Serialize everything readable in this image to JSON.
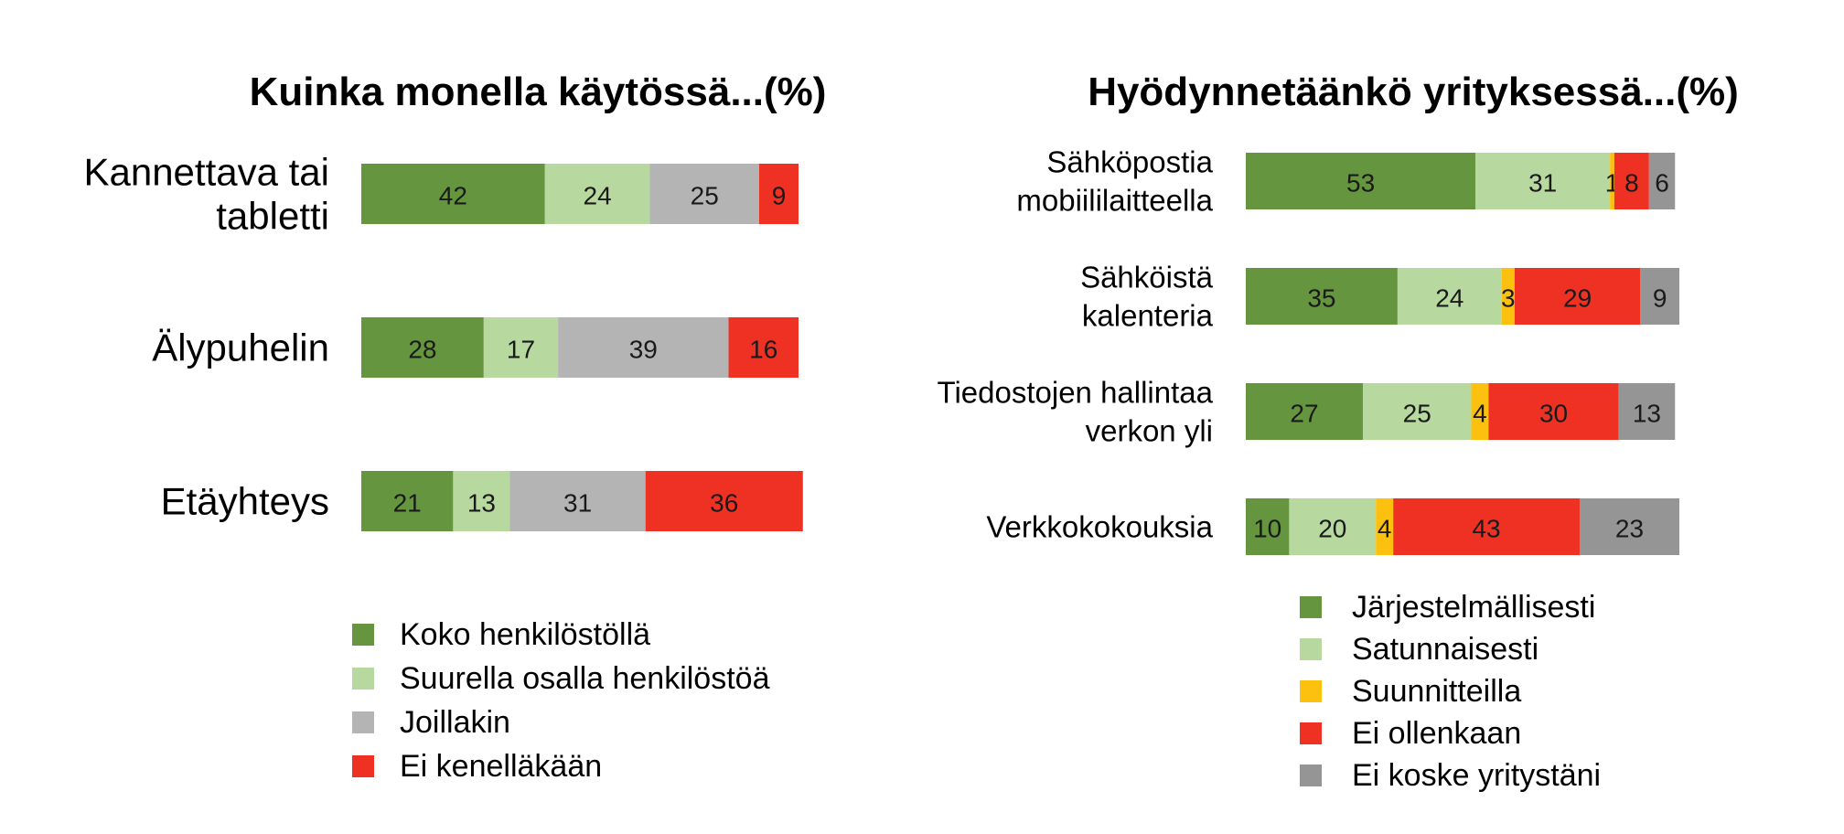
{
  "chart_data": [
    {
      "type": "bar",
      "orientation": "horizontal",
      "stacked": true,
      "title": "Kuinka monella käytössä...(%)",
      "categories": [
        [
          "Kannettava tai",
          "tabletti"
        ],
        [
          "Älypuhelin"
        ],
        [
          "Etäyhteys"
        ]
      ],
      "series": [
        {
          "name": "Koko henkilöstöllä",
          "color": "#66953f",
          "values": [
            42,
            28,
            21
          ]
        },
        {
          "name": "Suurella osalla henkilöstöä",
          "color": "#b7d9a0",
          "values": [
            24,
            17,
            13
          ]
        },
        {
          "name": "Joillakin",
          "color": "#b4b4b4",
          "values": [
            25,
            39,
            31
          ]
        },
        {
          "name": "Ei kenelläkään",
          "color": "#ef3124",
          "values": [
            9,
            16,
            36
          ]
        }
      ],
      "xlim": [
        0,
        100
      ],
      "grid": false,
      "legend": "bottom"
    },
    {
      "type": "bar",
      "orientation": "horizontal",
      "stacked": true,
      "title": "Hyödynnetäänkö yrityksessä...(%)",
      "categories": [
        [
          "Sähköpostia",
          "mobiililaitteella"
        ],
        [
          "Sähköistä",
          "kalenteria"
        ],
        [
          "Tiedostojen hallintaa",
          "verkon yli"
        ],
        [
          "Verkkokokouksia"
        ]
      ],
      "series": [
        {
          "name": "Järjestelmällisesti",
          "color": "#66953f",
          "values": [
            53,
            35,
            27,
            10
          ]
        },
        {
          "name": "Satunnaisesti",
          "color": "#b7d9a0",
          "values": [
            31,
            24,
            25,
            20
          ]
        },
        {
          "name": "Suunnitteilla",
          "color": "#fcc10e",
          "values": [
            1,
            3,
            4,
            4
          ]
        },
        {
          "name": "Ei ollenkaan",
          "color": "#ef3124",
          "values": [
            8,
            29,
            30,
            43
          ]
        },
        {
          "name": "Ei koske yritystäni",
          "color": "#959595",
          "values": [
            6,
            9,
            13,
            23
          ]
        }
      ],
      "xlim": [
        0,
        100
      ],
      "grid": false,
      "legend": "bottom"
    }
  ]
}
